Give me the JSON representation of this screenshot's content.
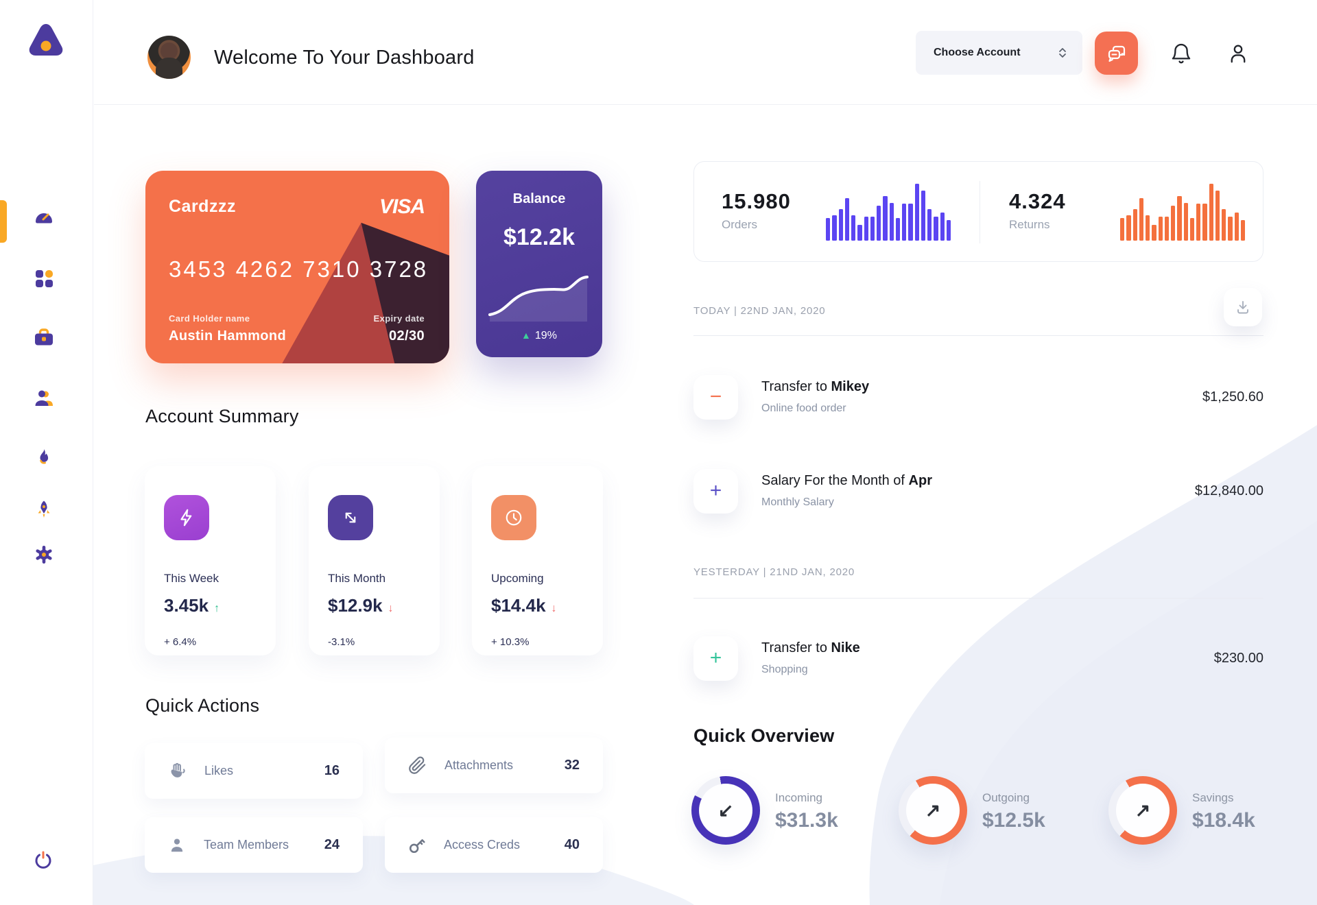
{
  "colors": {
    "accent_orange": "#f4714a",
    "accent_purple": "#4c3b9e",
    "orders_bar": "#5b45f2",
    "returns_bar": "#f4703d",
    "positive_green": "#2fbf8f",
    "negative_red": "#ef6b6b"
  },
  "sidebar": {
    "items": [
      {
        "icon": "speedometer-icon",
        "name": "dashboard",
        "active": true
      },
      {
        "icon": "grid-icon",
        "name": "apps",
        "active": false
      },
      {
        "icon": "briefcase-icon",
        "name": "work",
        "active": false
      },
      {
        "icon": "users-icon",
        "name": "team",
        "active": false
      },
      {
        "icon": "flame-icon",
        "name": "activity",
        "active": false
      },
      {
        "icon": "rocket-icon",
        "name": "launch",
        "active": false
      },
      {
        "icon": "gear-icon",
        "name": "settings",
        "active": false
      }
    ],
    "power_icon": "power-icon"
  },
  "header": {
    "title": "Welcome To Your Dashboard",
    "account_selector_label": "Choose Account",
    "icons": [
      "chat-icon",
      "bell-icon",
      "user-icon"
    ]
  },
  "credit_card": {
    "name": "Cardzzz",
    "brand": "VISA",
    "number": "3453 4262 7310 3728",
    "holder_label": "Card Holder name",
    "holder": "Austin Hammond",
    "expiry_label": "Expiry date",
    "expiry": "02/30"
  },
  "balance_card": {
    "label": "Balance",
    "value": "$12.2k",
    "change": "19%",
    "change_arrow": "▲"
  },
  "stats": {
    "orders": {
      "value": "15.980",
      "label": "Orders"
    },
    "returns": {
      "value": "4.324",
      "label": "Returns"
    },
    "bars": [
      40,
      45,
      55,
      75,
      45,
      28,
      42,
      42,
      62,
      78,
      66,
      40,
      65,
      65,
      100,
      88,
      56,
      42,
      50,
      36
    ]
  },
  "account_summary": {
    "title": "Account Summary",
    "cards": [
      {
        "icon": "lightning-icon",
        "period": "This Week",
        "value": "3.45k",
        "trend": "up",
        "trend_arrow": "↑",
        "change": "+ 6.4%"
      },
      {
        "icon": "trend-arrow-icon",
        "period": "This Month",
        "value": "$12.9k",
        "trend": "down",
        "trend_arrow": "↓",
        "change": "-3.1%"
      },
      {
        "icon": "clock-icon",
        "period": "Upcoming",
        "value": "$14.4k",
        "trend": "down",
        "trend_arrow": "↓",
        "change": "+ 10.3%"
      }
    ]
  },
  "quick_actions": {
    "title": "Quick Actions",
    "items": [
      {
        "icon": "clap-icon",
        "label": "Likes",
        "count": "16"
      },
      {
        "icon": "paperclip-icon",
        "label": "Attachments",
        "count": "32"
      },
      {
        "icon": "person-icon",
        "label": "Team Members",
        "count": "24"
      },
      {
        "icon": "key-icon",
        "label": "Access Creds",
        "count": "40"
      }
    ]
  },
  "transactions": {
    "download_icon": "download-icon",
    "groups": [
      {
        "date": "TODAY | 22ND JAN, 2020",
        "items": [
          {
            "sign": "−",
            "sign_type": "minus",
            "title_prefix": "Transfer to ",
            "title_bold": "Mikey",
            "subtitle": "Online food order",
            "amount": "$1,250.60"
          },
          {
            "sign": "+",
            "sign_type": "plus-purple",
            "title_prefix": "Salary For the Month of ",
            "title_bold": "Apr",
            "subtitle": "Monthly Salary",
            "amount": "$12,840.00"
          }
        ]
      },
      {
        "date": "YESTERDAY | 21ND JAN, 2020",
        "items": [
          {
            "sign": "+",
            "sign_type": "plus-green",
            "title_prefix": "Transfer to ",
            "title_bold": "Nike",
            "subtitle": "Shopping",
            "amount": "$230.00"
          }
        ]
      }
    ]
  },
  "quick_overview": {
    "title": "Quick Overview",
    "items": [
      {
        "label": "Incoming",
        "value": "$31.3k",
        "arrow": "↙",
        "ring_percent": 85,
        "ring_start": -10,
        "ring_color": "#4733b8"
      },
      {
        "label": "Outgoing",
        "value": "$12.5k",
        "arrow": "↗",
        "ring_percent": 70,
        "ring_start": -30,
        "ring_color": "#f4704a"
      },
      {
        "label": "Savings",
        "value": "$18.4k",
        "arrow": "↗",
        "ring_percent": 70,
        "ring_start": -30,
        "ring_color": "#f4704a"
      }
    ]
  }
}
